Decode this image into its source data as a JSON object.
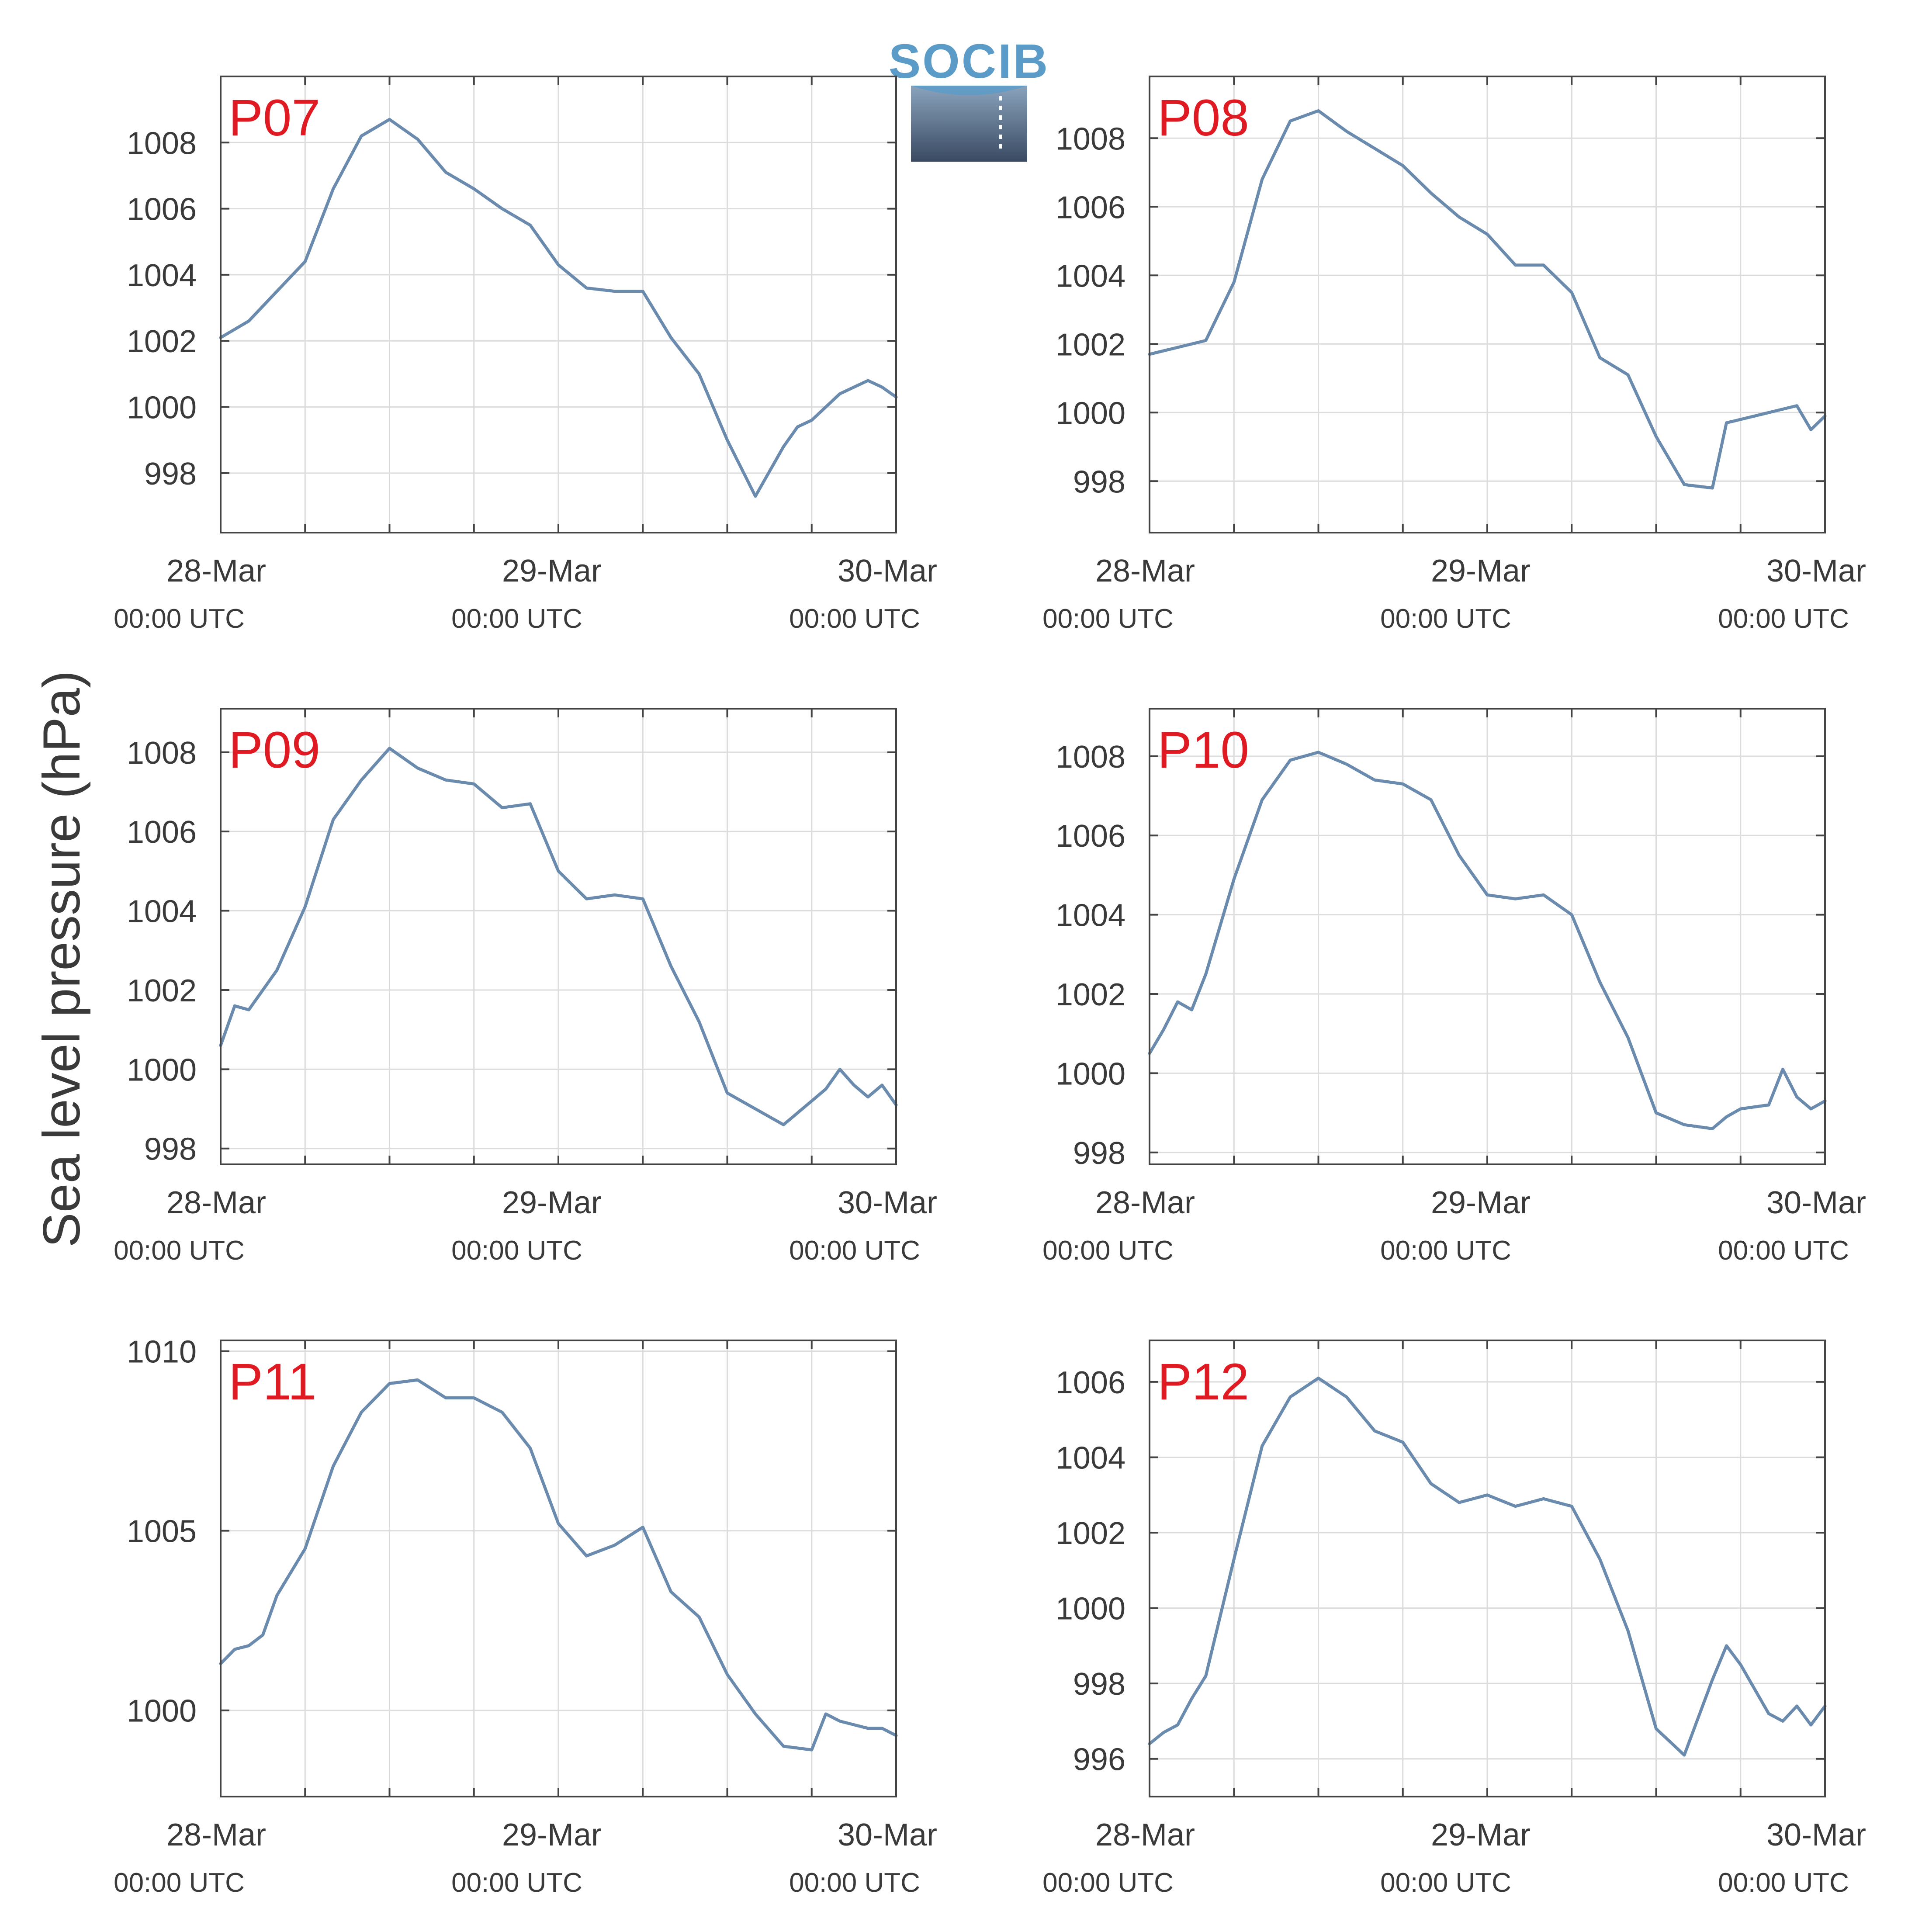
{
  "figure": {
    "ylabel": "Sea level pressure (hPa)",
    "logo_text": "SOCIB",
    "colors": {
      "line": "#6a8bad",
      "label": "#e01a22",
      "grid": "#dcdcdc",
      "axis": "#444444",
      "text": "#3a3a3a"
    }
  },
  "chart_data": [
    {
      "type": "line",
      "title": "P07",
      "x_ticks": [
        {
          "day": "28-Mar",
          "time": "00:00 UTC"
        },
        {
          "day": "29-Mar",
          "time": "00:00 UTC"
        },
        {
          "day": "30-Mar",
          "time": "00:00 UTC"
        }
      ],
      "xlim": [
        "2023-03-28 00:00",
        "2023-03-30 00:00"
      ],
      "ylim": [
        996.2,
        1010.0
      ],
      "yticks": [
        998,
        1000,
        1002,
        1004,
        1006,
        1008
      ],
      "series": [
        {
          "x_hours": [
            0,
            2,
            4,
            6,
            8,
            10,
            12,
            14,
            16,
            18,
            20,
            22,
            24,
            26,
            28,
            30,
            32,
            34,
            36,
            38,
            40,
            41,
            42,
            44,
            46,
            47,
            48
          ],
          "values": [
            1002.1,
            1002.6,
            1003.5,
            1004.4,
            1006.6,
            1008.2,
            1008.7,
            1008.1,
            1007.1,
            1006.6,
            1006.0,
            1005.5,
            1004.3,
            1003.6,
            1003.5,
            1003.5,
            1002.1,
            1001.0,
            999.0,
            997.3,
            998.8,
            999.4,
            999.6,
            1000.4,
            1000.8,
            1000.6,
            1000.3
          ]
        }
      ]
    },
    {
      "type": "line",
      "title": "P08",
      "x_ticks": [
        {
          "day": "28-Mar",
          "time": "00:00 UTC"
        },
        {
          "day": "29-Mar",
          "time": "00:00 UTC"
        },
        {
          "day": "30-Mar",
          "time": "00:00 UTC"
        }
      ],
      "xlim": [
        "2023-03-28 00:00",
        "2023-03-30 00:00"
      ],
      "ylim": [
        996.5,
        1009.8
      ],
      "yticks": [
        998,
        1000,
        1002,
        1004,
        1006,
        1008
      ],
      "series": [
        {
          "x_hours": [
            0,
            2,
            4,
            6,
            8,
            10,
            12,
            14,
            16,
            18,
            20,
            22,
            24,
            26,
            28,
            30,
            32,
            34,
            36,
            38,
            40,
            41,
            42,
            44,
            46,
            47,
            48
          ],
          "values": [
            1001.7,
            1001.9,
            1002.1,
            1003.8,
            1006.8,
            1008.5,
            1008.8,
            1008.2,
            1007.7,
            1007.2,
            1006.4,
            1005.7,
            1005.2,
            1004.3,
            1004.3,
            1003.5,
            1001.6,
            1001.1,
            999.3,
            997.9,
            997.8,
            999.7,
            999.8,
            1000.0,
            1000.2,
            999.5,
            999.9
          ]
        }
      ]
    },
    {
      "type": "line",
      "title": "P09",
      "x_ticks": [
        {
          "day": "28-Mar",
          "time": "00:00 UTC"
        },
        {
          "day": "29-Mar",
          "time": "00:00 UTC"
        },
        {
          "day": "30-Mar",
          "time": "00:00 UTC"
        }
      ],
      "xlim": [
        "2023-03-28 00:00",
        "2023-03-30 00:00"
      ],
      "ylim": [
        997.6,
        1009.1
      ],
      "yticks": [
        998,
        1000,
        1002,
        1004,
        1006,
        1008
      ],
      "series": [
        {
          "x_hours": [
            0,
            1,
            2,
            4,
            6,
            8,
            10,
            12,
            14,
            16,
            18,
            20,
            22,
            24,
            26,
            28,
            30,
            32,
            34,
            36,
            38,
            40,
            42,
            43,
            44,
            45,
            46,
            47,
            48
          ],
          "values": [
            1000.6,
            1001.6,
            1001.5,
            1002.5,
            1004.1,
            1006.3,
            1007.3,
            1008.1,
            1007.6,
            1007.3,
            1007.2,
            1006.6,
            1006.7,
            1005.0,
            1004.3,
            1004.4,
            1004.3,
            1002.6,
            1001.2,
            999.4,
            999.0,
            998.6,
            999.2,
            999.5,
            1000.0,
            999.6,
            999.3,
            999.6,
            999.1
          ]
        }
      ]
    },
    {
      "type": "line",
      "title": "P10",
      "x_ticks": [
        {
          "day": "28-Mar",
          "time": "00:00 UTC"
        },
        {
          "day": "29-Mar",
          "time": "00:00 UTC"
        },
        {
          "day": "30-Mar",
          "time": "00:00 UTC"
        }
      ],
      "xlim": [
        "2023-03-28 00:00",
        "2023-03-30 00:00"
      ],
      "ylim": [
        997.7,
        1009.2
      ],
      "yticks": [
        998,
        1000,
        1002,
        1004,
        1006,
        1008
      ],
      "series": [
        {
          "x_hours": [
            0,
            1,
            2,
            3,
            4,
            6,
            8,
            10,
            12,
            14,
            16,
            18,
            20,
            22,
            24,
            26,
            28,
            30,
            32,
            34,
            36,
            38,
            40,
            41,
            42,
            44,
            45,
            46,
            47,
            48
          ],
          "values": [
            1000.5,
            1001.1,
            1001.8,
            1001.6,
            1002.5,
            1004.9,
            1006.9,
            1007.9,
            1008.1,
            1007.8,
            1007.4,
            1007.3,
            1006.9,
            1005.5,
            1004.5,
            1004.4,
            1004.5,
            1004.0,
            1002.3,
            1000.9,
            999.0,
            998.7,
            998.6,
            998.9,
            999.1,
            999.2,
            1000.1,
            999.4,
            999.1,
            999.3
          ]
        }
      ]
    },
    {
      "type": "line",
      "title": "P11",
      "x_ticks": [
        {
          "day": "28-Mar",
          "time": "00:00 UTC"
        },
        {
          "day": "29-Mar",
          "time": "00:00 UTC"
        },
        {
          "day": "30-Mar",
          "time": "00:00 UTC"
        }
      ],
      "xlim": [
        "2023-03-28 00:00",
        "2023-03-30 00:00"
      ],
      "ylim": [
        997.6,
        1010.3
      ],
      "yticks": [
        1000,
        1005,
        1010
      ],
      "series": [
        {
          "x_hours": [
            0,
            1,
            2,
            3,
            4,
            6,
            8,
            10,
            12,
            14,
            16,
            18,
            20,
            22,
            24,
            26,
            28,
            30,
            32,
            34,
            36,
            38,
            40,
            42,
            43,
            44,
            45,
            46,
            47,
            48
          ],
          "values": [
            1001.3,
            1001.7,
            1001.8,
            1002.1,
            1003.2,
            1004.5,
            1006.8,
            1008.3,
            1009.1,
            1009.2,
            1008.7,
            1008.7,
            1008.3,
            1007.3,
            1005.2,
            1004.3,
            1004.6,
            1005.1,
            1003.3,
            1002.6,
            1001.0,
            999.9,
            999.0,
            998.9,
            999.9,
            999.7,
            999.6,
            999.5,
            999.5,
            999.3
          ]
        }
      ]
    },
    {
      "type": "line",
      "title": "P12",
      "x_ticks": [
        {
          "day": "28-Mar",
          "time": "00:00 UTC"
        },
        {
          "day": "29-Mar",
          "time": "00:00 UTC"
        },
        {
          "day": "30-Mar",
          "time": "00:00 UTC"
        }
      ],
      "xlim": [
        "2023-03-28 00:00",
        "2023-03-30 00:00"
      ],
      "ylim": [
        995.0,
        1007.1
      ],
      "yticks": [
        996,
        998,
        1000,
        1002,
        1004,
        1006
      ],
      "series": [
        {
          "x_hours": [
            0,
            1,
            2,
            3,
            4,
            6,
            8,
            10,
            12,
            14,
            16,
            18,
            20,
            22,
            24,
            26,
            28,
            30,
            32,
            34,
            36,
            38,
            40,
            41,
            42,
            44,
            45,
            46,
            47,
            48
          ],
          "values": [
            996.4,
            996.7,
            996.9,
            997.6,
            998.2,
            1001.3,
            1004.3,
            1005.6,
            1006.1,
            1005.6,
            1004.7,
            1004.4,
            1003.3,
            1002.8,
            1003.0,
            1002.7,
            1002.9,
            1002.7,
            1001.3,
            999.4,
            996.8,
            996.1,
            998.1,
            999.0,
            998.5,
            997.2,
            997.0,
            997.4,
            996.9,
            997.4
          ]
        }
      ]
    }
  ]
}
